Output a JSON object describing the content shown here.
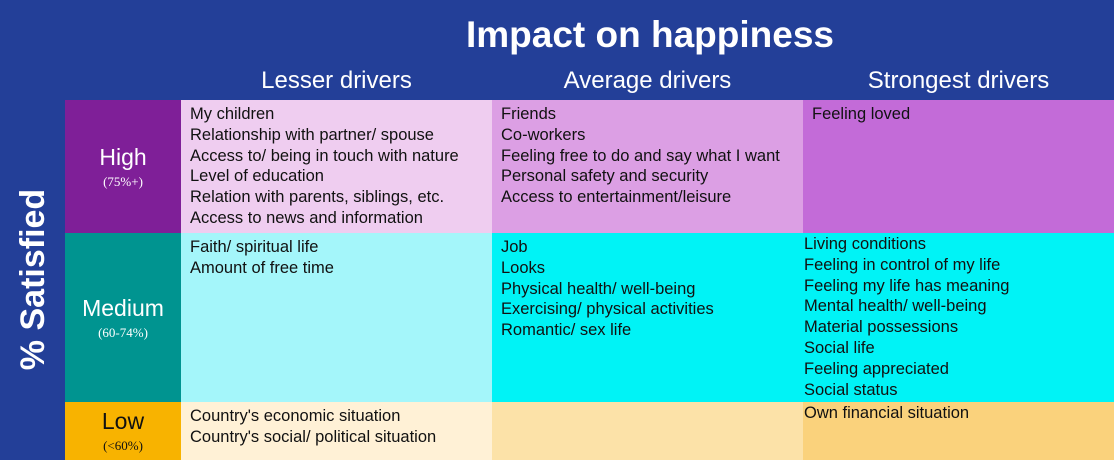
{
  "title": "Impact on happiness",
  "y_axis_label": "% Satisfied",
  "columns": [
    "Lesser drivers",
    "Average drivers",
    "Strongest drivers"
  ],
  "rows": [
    {
      "name": "High",
      "range": "(75%+)"
    },
    {
      "name": "Medium",
      "range": "(60-74%)"
    },
    {
      "name": "Low",
      "range": "(<60%)"
    }
  ],
  "cells": {
    "high": {
      "lesser": [
        "My children",
        "Relationship with partner/ spouse",
        "Access to/ being in touch with nature",
        "Level of education",
        "Relation with parents, siblings, etc.",
        "Access to news and information"
      ],
      "average": [
        "Friends",
        "Co-workers",
        "Feeling free to do and say what I want",
        "Personal safety and security",
        "Access to entertainment/leisure"
      ],
      "strongest": [
        "Feeling loved"
      ]
    },
    "medium": {
      "lesser": [
        "Faith/ spiritual life",
        "Amount of free time"
      ],
      "average": [
        "Job",
        "Looks",
        "Physical health/ well-being",
        "Exercising/ physical activities",
        "Romantic/ sex life"
      ],
      "strongest": [
        "Living conditions",
        "Feeling in control of my life",
        "Feeling my life has meaning",
        "Mental health/ well-being",
        "Material possessions",
        "Social life",
        "Feeling appreciated",
        "Social status"
      ]
    },
    "low": {
      "lesser": [
        "Country's economic situation",
        "Country's social/ political situation"
      ],
      "average": [],
      "strongest": [
        "Own financial situation"
      ]
    }
  },
  "colors": {
    "navy": "#233f98",
    "high_header": "#7f1f98",
    "high_lesser": "#efcdf0",
    "high_average": "#dc9fe4",
    "high_strongest": "#c36bd8",
    "medium_header": "#009490",
    "medium_lesser": "#a4f6fa",
    "medium_average": "#00f3f6",
    "medium_strongest": "#00f3f6",
    "low_header": "#f8b300",
    "low_lesser": "#fff1d6",
    "low_average": "#fce2a8",
    "low_strongest": "#fad27c"
  }
}
